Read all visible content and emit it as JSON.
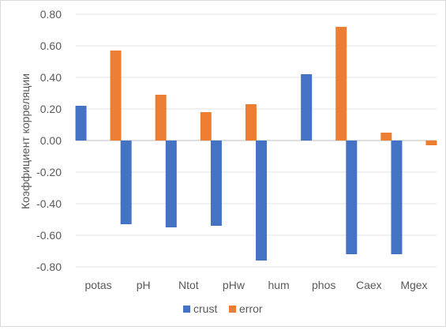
{
  "chart_data": {
    "type": "bar",
    "title": "",
    "xlabel": "",
    "ylabel": "Коэффициент корреляции",
    "ylim": [
      -0.8,
      0.8
    ],
    "yticks": [
      "0.80",
      "0.60",
      "0.40",
      "0.20",
      "0.00",
      "-0.20",
      "-0.40",
      "-0.60",
      "-0.80"
    ],
    "ytick_values": [
      0.8,
      0.6,
      0.4,
      0.2,
      0.0,
      -0.2,
      -0.4,
      -0.6,
      -0.8
    ],
    "categories": [
      "potas",
      "pH",
      "Ntot",
      "pHw",
      "hum",
      "phos",
      "Caex",
      "Mgex"
    ],
    "series": [
      {
        "name": "crust",
        "color": "#4472c4",
        "values": [
          0.22,
          -0.53,
          -0.55,
          -0.54,
          -0.76,
          0.42,
          -0.72,
          -0.72
        ]
      },
      {
        "name": "error",
        "color": "#ed7d31",
        "values": [
          0.57,
          0.29,
          0.18,
          0.23,
          0.0,
          0.72,
          0.05,
          -0.03
        ]
      }
    ],
    "grid": true,
    "legend": "bottom"
  }
}
